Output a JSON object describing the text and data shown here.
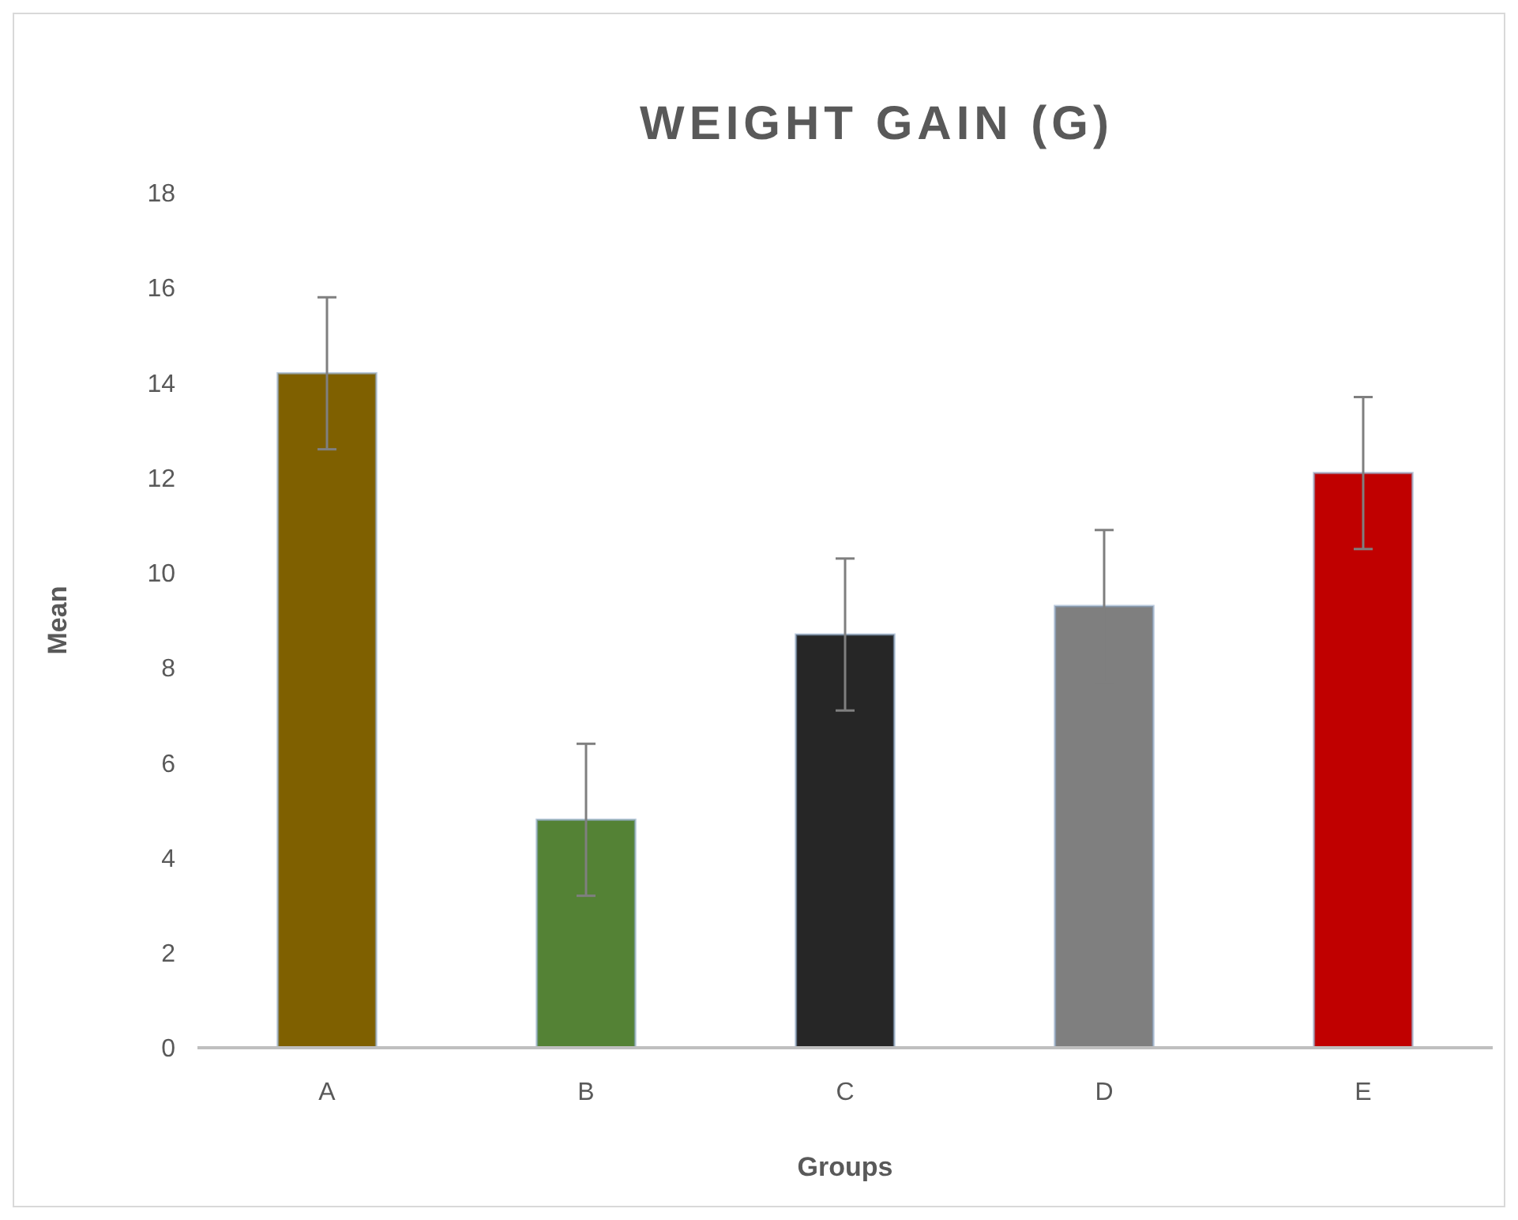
{
  "chart_data": {
    "type": "bar",
    "title": "WEIGHT GAIN (G)",
    "xlabel": "Groups",
    "ylabel": "Mean",
    "categories": [
      "A",
      "B",
      "C",
      "D",
      "E"
    ],
    "values": [
      14.2,
      4.8,
      8.7,
      9.3,
      12.1
    ],
    "colors": [
      "#7f6000",
      "#548235",
      "#262626",
      "#7f7f7f",
      "#c00000"
    ],
    "errors": [
      1.6,
      1.6,
      1.6,
      1.6,
      1.6
    ],
    "ylim": [
      0,
      18
    ],
    "yticks": [
      0,
      2,
      4,
      6,
      8,
      10,
      12,
      14,
      16,
      18
    ],
    "grid": false
  }
}
